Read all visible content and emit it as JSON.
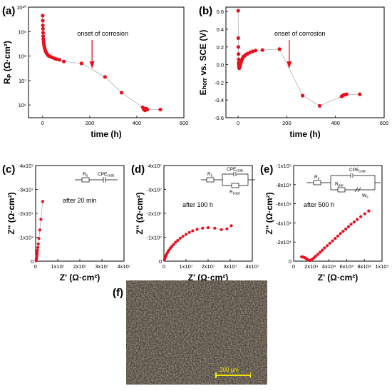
{
  "panels": {
    "a": "(a)",
    "b": "(b)",
    "c": "(c)",
    "d": "(d)",
    "e": "(e)",
    "f": "(f)"
  },
  "chart_data": [
    {
      "id": "a",
      "type": "scatter",
      "xlabel": "time (h)",
      "ylabel": "Rₚ (Ω·cm²)",
      "yscale": "log",
      "xlim": [
        -60,
        600
      ],
      "ylim": [
        300000.0,
        10000000000.0
      ],
      "xticks": [
        0,
        200,
        400,
        600
      ],
      "xtick_labels": [
        "0",
        "200",
        "400",
        "600"
      ],
      "yticks": [
        1000000.0,
        10000000.0,
        100000000.0,
        1000000000.0,
        10000000000.0
      ],
      "ytick_labels": [
        "10⁶",
        "10⁷",
        "10⁸",
        "10⁹",
        "10¹⁰"
      ],
      "annotation": "onset of corrosion",
      "annotation_x": 210,
      "x": [
        0.3,
        0.5,
        1,
        1.5,
        2,
        2.5,
        3,
        4,
        5,
        6,
        8,
        10,
        12,
        15,
        18,
        22,
        27,
        33,
        40,
        50,
        60,
        72,
        90,
        165,
        265,
        335,
        425,
        430,
        432,
        435,
        440,
        445,
        500
      ],
      "y": [
        4500000000.0,
        2800000000.0,
        1800000000.0,
        1300000000.0,
        900000000.0,
        650000000.0,
        500000000.0,
        400000000.0,
        320000000.0,
        270000000.0,
        220000000.0,
        190000000.0,
        160000000.0,
        140000000.0,
        125000000.0,
        110000000.0,
        100000000.0,
        95000000.0,
        88000000.0,
        80000000.0,
        75000000.0,
        70000000.0,
        60000000.0,
        50000000.0,
        14000000.0,
        3200000.0,
        800000.0,
        650000.0,
        700000.0,
        600000.0,
        700000.0,
        650000.0,
        650000.0
      ]
    },
    {
      "id": "b",
      "type": "scatter",
      "xlabel": "time (h)",
      "ylabel": "Eₕₒᵣᵣ vs. SCE (V)",
      "xlim": [
        -50,
        600
      ],
      "ylim": [
        -0.6,
        0.65
      ],
      "xticks": [
        0,
        200,
        400,
        600
      ],
      "xtick_labels": [
        "0",
        "200",
        "400",
        "600"
      ],
      "yticks": [
        -0.6,
        -0.4,
        -0.2,
        0,
        0.2,
        0.4,
        0.6
      ],
      "ytick_labels": [
        "-0.6",
        "-0.4",
        "-0.2",
        "0.0",
        "0.2",
        "0.4",
        "0.6"
      ],
      "annotation": "onset of corrosion",
      "annotation_x": 210,
      "x": [
        0.3,
        0.6,
        1,
        1.5,
        2,
        2.5,
        3,
        3.5,
        4,
        5,
        6,
        7,
        8,
        10,
        12,
        15,
        18,
        22,
        27,
        33,
        40,
        50,
        60,
        72,
        100,
        170,
        265,
        335,
        425,
        430,
        435,
        440,
        445,
        500
      ],
      "y": [
        0.61,
        0.3,
        0.2,
        0.12,
        0.06,
        0.02,
        0.0,
        -0.02,
        -0.035,
        -0.04,
        -0.03,
        -0.02,
        -0.01,
        0.01,
        0.03,
        0.05,
        0.07,
        0.09,
        0.1,
        0.115,
        0.125,
        0.14,
        0.15,
        0.16,
        0.165,
        0.175,
        -0.35,
        -0.465,
        -0.36,
        -0.35,
        -0.34,
        -0.34,
        -0.335,
        -0.335
      ]
    },
    {
      "id": "c",
      "type": "scatter",
      "xlabel": "Z' (Ω·cm²)",
      "ylabel": "Z'' (Ω·cm²)",
      "xlim": [
        0,
        40000000.0
      ],
      "ylim": [
        0,
        40000000.0
      ],
      "xticks": [
        0,
        10000000.0,
        20000000.0,
        30000000.0,
        40000000.0
      ],
      "xtick_labels": [
        "0",
        "1x10⁷",
        "2x10⁷",
        "3x10⁷",
        "4x10⁷"
      ],
      "yticks": [
        0,
        10000000.0,
        20000000.0,
        30000000.0,
        40000000.0
      ],
      "ytick_labels": [
        "0",
        "-1x10⁷",
        "-2x10⁷",
        "-3x10⁷",
        "-4x10⁷"
      ],
      "annotation": "after 20 min",
      "circuit": [
        "R",
        "s",
        "CPE",
        "coat"
      ],
      "x": [
        200000.0,
        300000.0,
        400000.0,
        500000.0,
        600000.0,
        700000.0,
        800000.0,
        1000000.0,
        1200000.0,
        1500000.0,
        1900000.0,
        2400000.0,
        3200000.0
      ],
      "y": [
        200000.0,
        700000.0,
        1300000.0,
        2000000.0,
        2800000.0,
        3600000.0,
        4500000.0,
        5700000.0,
        7200000.0,
        9500000.0,
        13000000.0,
        17500000.0,
        25000000.0
      ]
    },
    {
      "id": "d",
      "type": "scatter",
      "xlabel": "Z' (Ω·cm²)",
      "ylabel": "Z'' (Ω·cm²)",
      "xlim": [
        0,
        40000000.0
      ],
      "ylim": [
        0,
        40000000.0
      ],
      "xticks": [
        0,
        10000000.0,
        20000000.0,
        30000000.0,
        40000000.0
      ],
      "xtick_labels": [
        "0",
        "1x10⁷",
        "2x10⁷",
        "3x10⁷",
        "4x10⁷"
      ],
      "yticks": [
        0,
        10000000.0,
        20000000.0,
        30000000.0,
        40000000.0
      ],
      "ytick_labels": [
        "0",
        "-1x10⁷",
        "-2x10⁷",
        "-3x10⁷",
        "-4x10⁷"
      ],
      "annotation": "after 100 h",
      "circuit": [
        "R",
        "s",
        "CPE",
        "coat",
        "R",
        "coat"
      ],
      "x": [
        200000.0,
        400000.0,
        700000.0,
        1000000.0,
        1400000.0,
        1800000.0,
        2300000.0,
        2900000.0,
        3600000.0,
        4400000.0,
        5300000.0,
        6300000.0,
        7400000.0,
        8600000.0,
        10000000.0,
        11500000.0,
        13000000.0,
        15000000.0,
        17500000.0,
        20000000.0,
        23000000.0,
        26000000.0,
        28500000.0,
        30500000.0
      ],
      "y": [
        500000.0,
        1100000.0,
        1800000.0,
        2500000.0,
        3200000.0,
        3900000.0,
        4600000.0,
        5400000.0,
        6200000.0,
        7000000.0,
        7900000.0,
        8700000.0,
        9600000.0,
        10400000.0,
        11200000.0,
        12000000.0,
        12700000.0,
        13300000.0,
        13800000.0,
        14000000.0,
        13800000.0,
        13200000.0,
        13500000.0,
        14800000.0
      ]
    },
    {
      "id": "e",
      "type": "scatter",
      "xlabel": "Z' (Ω·cm²)",
      "ylabel": "Z'' (Ω·cm²)",
      "xlim": [
        0,
        100000.0
      ],
      "ylim": [
        0,
        100000.0
      ],
      "xticks": [
        0,
        20000.0,
        40000.0,
        60000.0,
        80000.0,
        100000.0
      ],
      "xtick_labels": [
        "0",
        "2x10⁴",
        "4x10⁴",
        "6x10⁴",
        "8x10⁴",
        "1x10⁵"
      ],
      "yticks": [
        0,
        20000.0,
        40000.0,
        60000.0,
        80000.0,
        100000.0
      ],
      "ytick_labels": [
        "0",
        "-2x10⁴",
        "-4x10⁴",
        "-6x10⁴",
        "-8x10⁴",
        "-1x10⁵"
      ],
      "annotation": "after 500 h",
      "circuit": [
        "R",
        "s",
        "CPE",
        "coat",
        "R",
        "por",
        "W",
        "s"
      ],
      "x": [
        9000,
        10500,
        12000,
        13500,
        15000,
        16500,
        18000,
        19500,
        21000,
        23000,
        25000,
        27500,
        30000,
        32500,
        35000,
        38000,
        41000,
        44000,
        47000,
        50000,
        53000,
        56000,
        59000,
        62000,
        65000,
        68500,
        72000,
        76000,
        80500,
        85000
      ],
      "y": [
        4500,
        4300,
        3900,
        3200,
        2200,
        1200,
        700,
        1000,
        2000,
        3500,
        5200,
        7200,
        9300,
        11500,
        13800,
        16200,
        18700,
        21200,
        23800,
        26300,
        28800,
        31200,
        33600,
        36000,
        38500,
        41000,
        43600,
        46500,
        49500,
        52500
      ]
    }
  ],
  "micrograph": {
    "scale_label": "200 μm"
  }
}
